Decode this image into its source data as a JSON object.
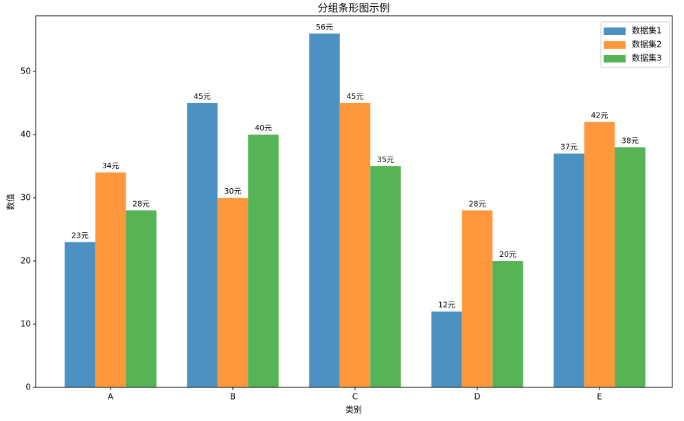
{
  "chart_data": {
    "type": "bar",
    "title": "分组条形图示例",
    "x_label": "类别",
    "y_label": "数值",
    "categories": [
      "A",
      "B",
      "C",
      "D",
      "E"
    ],
    "series": [
      {
        "name": "数据集1",
        "color": "#4b92c3",
        "values": [
          23,
          45,
          56,
          12,
          37
        ],
        "value_labels": [
          "23元",
          "45元",
          "56元",
          "12元",
          "37元"
        ]
      },
      {
        "name": "数据集2",
        "color": "#ff983d",
        "values": [
          34,
          30,
          45,
          28,
          42
        ],
        "value_labels": [
          "34元",
          "30元",
          "45元",
          "28元",
          "42元"
        ]
      },
      {
        "name": "数据集3",
        "color": "#56b356",
        "values": [
          28,
          40,
          35,
          20,
          38
        ],
        "value_labels": [
          "28元",
          "40元",
          "35元",
          "20元",
          "38元"
        ]
      }
    ],
    "ylim": [
      0,
      58.8
    ],
    "yticks": [
      0,
      10,
      20,
      30,
      40,
      50
    ],
    "grid": false,
    "legend": "upper right"
  }
}
